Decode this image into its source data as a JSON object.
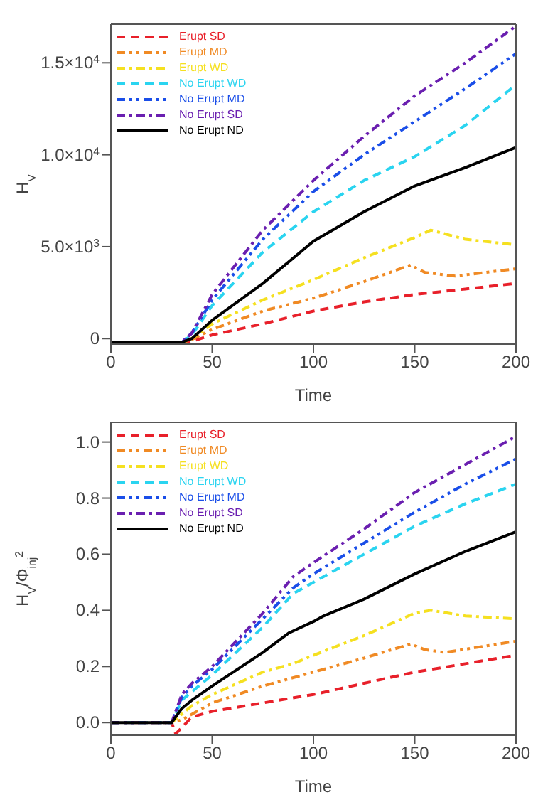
{
  "chart_data": [
    {
      "type": "line",
      "xlabel": "Time",
      "ylabel": "H$_{V}$",
      "xlim": [
        0,
        200
      ],
      "xticks": [
        0,
        50,
        100,
        150,
        200
      ],
      "ylim": [
        -300,
        17100
      ],
      "yticks": [
        0,
        {
          "value": 5000,
          "label": "5.0×10$^{3}$"
        },
        {
          "value": 10000,
          "label": "1.0×10$^{4}$"
        },
        {
          "value": 15000,
          "label": "1.5×10$^{4}$"
        }
      ],
      "legend": "top left",
      "marker": "none",
      "series": [
        {
          "name": "Erupt SD",
          "color": "#e8202a",
          "line_style": "dashed",
          "x": [
            0,
            35,
            40,
            50,
            75,
            100,
            125,
            150,
            175,
            200
          ],
          "values": [
            -200,
            -200,
            -150,
            200,
            800,
            1500,
            2000,
            2400,
            2700,
            3000
          ]
        },
        {
          "name": "Erupt MD",
          "color": "#f08a24",
          "line_style": "dashdotdot",
          "x": [
            0,
            35,
            40,
            50,
            75,
            100,
            125,
            148,
            155,
            170,
            200
          ],
          "values": [
            -200,
            -200,
            -50,
            500,
            1500,
            2200,
            3100,
            4000,
            3600,
            3400,
            3800
          ]
        },
        {
          "name": "Erupt WD",
          "color": "#f5e020",
          "line_style": "dashdot",
          "x": [
            0,
            35,
            40,
            50,
            75,
            100,
            125,
            150,
            158,
            175,
            200
          ],
          "values": [
            -200,
            -200,
            0,
            800,
            2100,
            3200,
            4400,
            5500,
            5900,
            5400,
            5100
          ]
        },
        {
          "name": "No Erupt WD",
          "color": "#2ad4f0",
          "line_style": "dashed",
          "x": [
            0,
            35,
            40,
            50,
            75,
            100,
            125,
            150,
            175,
            200
          ],
          "values": [
            -200,
            -200,
            200,
            1800,
            4700,
            6900,
            8600,
            9900,
            11600,
            13800
          ]
        },
        {
          "name": "No Erupt MD",
          "color": "#1a4ee8",
          "line_style": "dashdotdot",
          "x": [
            0,
            35,
            40,
            50,
            75,
            100,
            125,
            150,
            175,
            200
          ],
          "values": [
            -200,
            -200,
            300,
            2100,
            5400,
            8000,
            10000,
            11800,
            13600,
            15500
          ]
        },
        {
          "name": "No Erupt SD",
          "color": "#6a1fb0",
          "line_style": "dashdot",
          "x": [
            0,
            35,
            40,
            50,
            75,
            100,
            125,
            150,
            175,
            200
          ],
          "values": [
            -200,
            -200,
            300,
            2400,
            5900,
            8600,
            11000,
            13200,
            15000,
            17000
          ]
        },
        {
          "name": "No Erupt ND",
          "color": "#000000",
          "line_style": "solid",
          "x": [
            0,
            35,
            40,
            50,
            75,
            100,
            125,
            150,
            175,
            200
          ],
          "values": [
            -200,
            -200,
            0,
            1000,
            3000,
            5300,
            6900,
            8300,
            9300,
            10400
          ]
        }
      ]
    },
    {
      "type": "line",
      "xlabel": "Time",
      "ylabel": "H$_{V}$/Φ$_{inj}$$^{2}$",
      "xlim": [
        0,
        200
      ],
      "xticks": [
        0,
        50,
        100,
        150,
        200
      ],
      "ylim": [
        -0.045,
        1.07
      ],
      "yticks": [
        {
          "value": 0,
          "label": "0.0"
        },
        0.2,
        0.4,
        0.6,
        0.8,
        {
          "value": 1,
          "label": "1.0"
        }
      ],
      "legend": "top left",
      "marker": "none",
      "series": [
        {
          "name": "Erupt SD",
          "color": "#e8202a",
          "line_style": "dashed",
          "x": [
            0,
            30,
            32,
            40,
            50,
            75,
            100,
            125,
            150,
            175,
            200
          ],
          "values": [
            0,
            0,
            -0.04,
            0.02,
            0.04,
            0.07,
            0.1,
            0.14,
            0.18,
            0.21,
            0.24
          ]
        },
        {
          "name": "Erupt MD",
          "color": "#f08a24",
          "line_style": "dashdotdot",
          "x": [
            0,
            30,
            35,
            40,
            50,
            75,
            100,
            125,
            148,
            155,
            165,
            200
          ],
          "values": [
            0,
            0,
            0.01,
            0.03,
            0.07,
            0.13,
            0.18,
            0.23,
            0.28,
            0.26,
            0.25,
            0.29
          ]
        },
        {
          "name": "Erupt WD",
          "color": "#f5e020",
          "line_style": "dashdot",
          "x": [
            0,
            30,
            35,
            40,
            50,
            75,
            90,
            100,
            125,
            150,
            158,
            175,
            200
          ],
          "values": [
            0,
            0,
            0.03,
            0.06,
            0.1,
            0.18,
            0.21,
            0.24,
            0.31,
            0.39,
            0.4,
            0.38,
            0.37
          ]
        },
        {
          "name": "No Erupt WD",
          "color": "#2ad4f0",
          "line_style": "dashed",
          "x": [
            0,
            30,
            35,
            40,
            50,
            75,
            90,
            100,
            125,
            150,
            175,
            200
          ],
          "values": [
            0,
            0,
            0.08,
            0.11,
            0.17,
            0.34,
            0.46,
            0.5,
            0.6,
            0.7,
            0.78,
            0.85
          ]
        },
        {
          "name": "No Erupt MD",
          "color": "#1a4ee8",
          "line_style": "dashdotdot",
          "x": [
            0,
            30,
            35,
            40,
            50,
            75,
            90,
            100,
            125,
            150,
            175,
            200
          ],
          "values": [
            0,
            0,
            0.09,
            0.13,
            0.19,
            0.37,
            0.48,
            0.53,
            0.64,
            0.75,
            0.85,
            0.94
          ]
        },
        {
          "name": "No Erupt SD",
          "color": "#6a1fb0",
          "line_style": "dashdot",
          "x": [
            0,
            30,
            35,
            40,
            50,
            75,
            90,
            100,
            125,
            150,
            175,
            200
          ],
          "values": [
            0,
            0,
            0.1,
            0.14,
            0.2,
            0.39,
            0.52,
            0.57,
            0.69,
            0.82,
            0.92,
            1.02
          ]
        },
        {
          "name": "No Erupt ND",
          "color": "#000000",
          "line_style": "solid",
          "x": [
            0,
            30,
            35,
            40,
            50,
            75,
            88,
            100,
            105,
            125,
            150,
            175,
            200
          ],
          "values": [
            0,
            0,
            0.05,
            0.08,
            0.13,
            0.25,
            0.32,
            0.36,
            0.38,
            0.44,
            0.53,
            0.61,
            0.68
          ]
        }
      ]
    }
  ]
}
